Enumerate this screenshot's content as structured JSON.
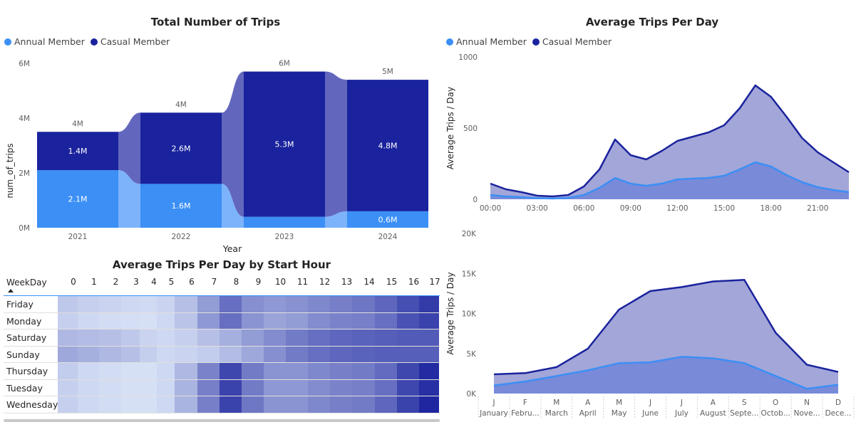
{
  "colors": {
    "annual": "#3b8ff5",
    "casual": "#1a239d",
    "annual_ribbon": "#7cb3fa",
    "casual_ribbon": "#6267bd",
    "area_casual": "#a3a6d8",
    "area_annual": "#7285d9"
  },
  "chart_data": [
    {
      "id": "total_trips",
      "type": "bar",
      "title": "Total Number of Trips",
      "legend": [
        "Annual Member",
        "Casual Member"
      ],
      "xlabel": "Year",
      "ylabel": "num_of_trips",
      "categories": [
        "2021",
        "2022",
        "2023",
        "2024"
      ],
      "series": [
        {
          "name": "Annual Member",
          "values": [
            2.1,
            1.6,
            0.4,
            0.6
          ],
          "labels": [
            "2.1M",
            "1.6M",
            "",
            "0.6M"
          ]
        },
        {
          "name": "Casual Member",
          "values": [
            1.4,
            2.6,
            5.3,
            4.8
          ],
          "labels": [
            "1.4M",
            "2.6M",
            "5.3M",
            "4.8M"
          ]
        }
      ],
      "totals": [
        "4M",
        "4M",
        "6M",
        "5M"
      ],
      "yticks": [
        "0M",
        "2M",
        "4M",
        "6M"
      ],
      "ylim": [
        0,
        6
      ]
    },
    {
      "id": "trips_per_hour",
      "type": "area",
      "title": "Average Trips Per Day",
      "legend": [
        "Annual Member",
        "Casual Member"
      ],
      "ylabel": "Average Trips / Day",
      "x": [
        0,
        1,
        2,
        3,
        4,
        5,
        6,
        7,
        8,
        9,
        10,
        11,
        12,
        13,
        14,
        15,
        16,
        17,
        18,
        19,
        20,
        21,
        22,
        23
      ],
      "xticks": [
        "00:00",
        "03:00",
        "06:00",
        "09:00",
        "12:00",
        "15:00",
        "18:00",
        "21:00"
      ],
      "yticks": [
        "0",
        "500",
        "1000"
      ],
      "ylim": [
        0,
        1000
      ],
      "series": [
        {
          "name": "Casual Member",
          "values": [
            110,
            70,
            50,
            25,
            20,
            30,
            90,
            210,
            420,
            310,
            280,
            340,
            410,
            440,
            470,
            520,
            640,
            800,
            720,
            580,
            430,
            330,
            260,
            190
          ]
        },
        {
          "name": "Annual Member",
          "values": [
            30,
            20,
            15,
            8,
            5,
            10,
            30,
            80,
            150,
            110,
            95,
            110,
            140,
            145,
            150,
            165,
            210,
            260,
            230,
            170,
            120,
            85,
            65,
            50
          ]
        }
      ]
    },
    {
      "id": "trips_per_month",
      "type": "area",
      "ylabel": "Average Trips / Day",
      "x_initials": [
        "J",
        "F",
        "M",
        "A",
        "M",
        "J",
        "J",
        "A",
        "S",
        "O",
        "N",
        "D"
      ],
      "x": [
        "January",
        "Febru...",
        "March",
        "April",
        "May",
        "June",
        "July",
        "August",
        "Septe...",
        "Octob...",
        "Nove...",
        "Dece..."
      ],
      "yticks": [
        "0K",
        "5K",
        "10K",
        "15K",
        "20K"
      ],
      "ylim": [
        0,
        20000
      ],
      "series": [
        {
          "name": "Casual Member",
          "values": [
            2400,
            2550,
            3300,
            5600,
            10500,
            12800,
            13300,
            14000,
            14200,
            7600,
            3600,
            2700
          ]
        },
        {
          "name": "Annual Member",
          "values": [
            1000,
            1500,
            2200,
            2900,
            3800,
            3900,
            4600,
            4400,
            3800,
            2200,
            600,
            1100
          ]
        }
      ]
    },
    {
      "id": "heatmap",
      "type": "heatmap",
      "title": "Average Trips Per Day by Start Hour",
      "row_header": "WeekDay",
      "columns": [
        "0",
        "1",
        "2",
        "3",
        "4",
        "5",
        "6",
        "7",
        "8",
        "9",
        "10",
        "11",
        "12",
        "13",
        "14",
        "15",
        "16",
        "17"
      ],
      "rows": [
        "Friday",
        "Monday",
        "Saturday",
        "Sunday",
        "Thursday",
        "Tuesday",
        "Wednesday"
      ],
      "values": [
        [
          0.18,
          0.14,
          0.12,
          0.1,
          0.09,
          0.12,
          0.22,
          0.4,
          0.62,
          0.46,
          0.42,
          0.45,
          0.5,
          0.54,
          0.58,
          0.66,
          0.78,
          0.88
        ],
        [
          0.14,
          0.1,
          0.08,
          0.07,
          0.06,
          0.1,
          0.2,
          0.42,
          0.62,
          0.44,
          0.36,
          0.4,
          0.48,
          0.52,
          0.54,
          0.62,
          0.76,
          0.84
        ],
        [
          0.26,
          0.24,
          0.22,
          0.18,
          0.12,
          0.1,
          0.14,
          0.22,
          0.3,
          0.4,
          0.48,
          0.56,
          0.62,
          0.66,
          0.68,
          0.7,
          0.72,
          0.72
        ],
        [
          0.34,
          0.3,
          0.26,
          0.22,
          0.15,
          0.1,
          0.12,
          0.16,
          0.24,
          0.34,
          0.46,
          0.56,
          0.62,
          0.66,
          0.68,
          0.7,
          0.7,
          0.7
        ],
        [
          0.16,
          0.1,
          0.08,
          0.06,
          0.06,
          0.1,
          0.26,
          0.52,
          0.82,
          0.56,
          0.44,
          0.44,
          0.5,
          0.54,
          0.56,
          0.64,
          0.82,
          0.96
        ],
        [
          0.14,
          0.1,
          0.08,
          0.06,
          0.06,
          0.1,
          0.28,
          0.54,
          0.84,
          0.56,
          0.42,
          0.42,
          0.48,
          0.52,
          0.54,
          0.62,
          0.82,
          0.94
        ],
        [
          0.14,
          0.1,
          0.08,
          0.06,
          0.06,
          0.1,
          0.28,
          0.54,
          0.84,
          0.58,
          0.44,
          0.44,
          0.5,
          0.54,
          0.56,
          0.66,
          0.84,
          0.98
        ]
      ]
    }
  ]
}
